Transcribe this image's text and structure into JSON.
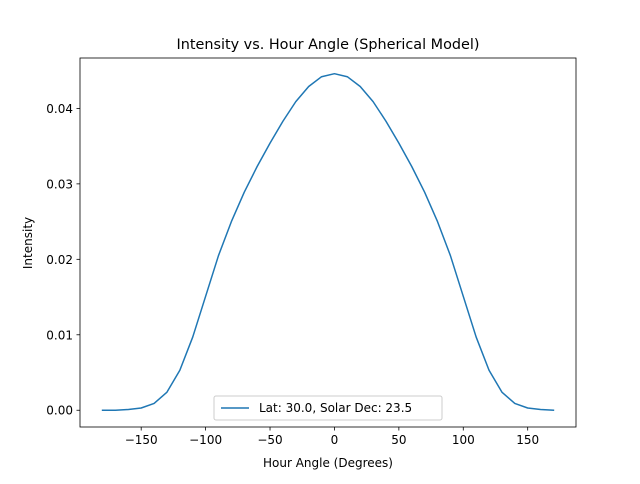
{
  "chart_data": {
    "type": "line",
    "title": "Intensity vs. Hour Angle (Spherical Model)",
    "xlabel": "Hour Angle (Degrees)",
    "ylabel": "Intensity",
    "xlim": [
      -197.5,
      187.5
    ],
    "ylim": [
      -0.00222,
      0.04668
    ],
    "xticks": [
      -150,
      -100,
      -50,
      0,
      50,
      100,
      150
    ],
    "xtick_labels": [
      "−150",
      "−100",
      "−50",
      "0",
      "50",
      "100",
      "150"
    ],
    "yticks": [
      0.0,
      0.01,
      0.02,
      0.03,
      0.04
    ],
    "ytick_labels": [
      "0.00",
      "0.01",
      "0.02",
      "0.03",
      "0.04"
    ],
    "grid": false,
    "legend_position": "lower center",
    "series": [
      {
        "name": "Lat: 30.0, Solar Dec: 23.5",
        "color": "#1f77b4",
        "x": [
          -180,
          -170,
          -160,
          -150,
          -140,
          -130,
          -120,
          -110,
          -100,
          -90,
          -80,
          -70,
          -60,
          -50,
          -40,
          -30,
          -20,
          -10,
          0,
          10,
          20,
          30,
          40,
          50,
          60,
          70,
          80,
          90,
          100,
          110,
          120,
          130,
          140,
          150,
          160,
          170
        ],
        "y": [
          0.0,
          0.0,
          0.0001,
          0.0003,
          0.0009,
          0.0024,
          0.0053,
          0.0097,
          0.0151,
          0.0205,
          0.025,
          0.0289,
          0.0323,
          0.0354,
          0.0383,
          0.0409,
          0.0429,
          0.0442,
          0.0446,
          0.0442,
          0.0429,
          0.0409,
          0.0383,
          0.0354,
          0.0323,
          0.0289,
          0.025,
          0.0205,
          0.0151,
          0.0097,
          0.0053,
          0.0024,
          0.0009,
          0.0003,
          0.0001,
          0.0
        ]
      }
    ]
  }
}
